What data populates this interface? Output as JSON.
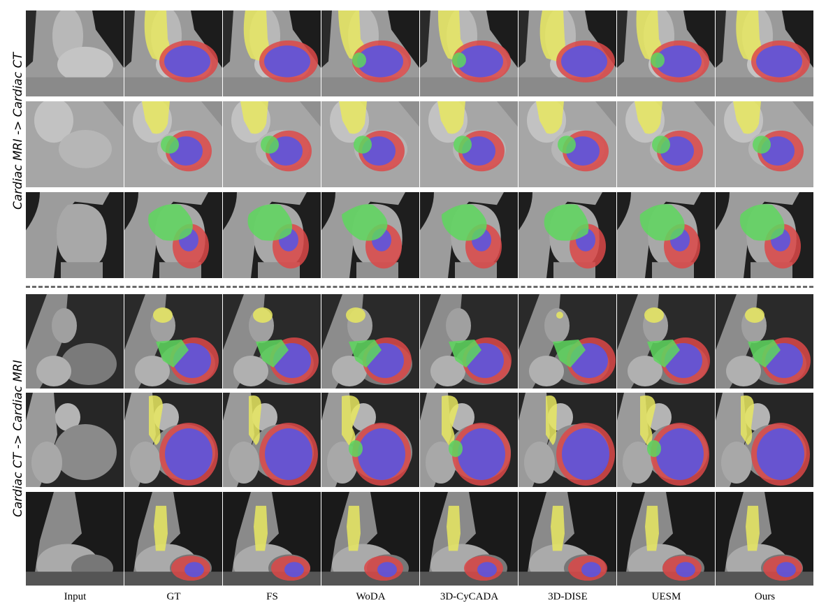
{
  "figure": {
    "row_groups": [
      {
        "label": "Cardiac MRI -> Cardiac CT",
        "modality": "CT"
      },
      {
        "label": "Cardiac CT -> Cardiac MRI",
        "modality": "MRI"
      }
    ],
    "columns": [
      "Input",
      "GT",
      "FS",
      "WoDA",
      "3D-CyCADA",
      "3D-DISE",
      "UESM",
      "Ours"
    ],
    "legend_colors": {
      "yellow_structure": "#e8e860",
      "green_structure": "#5ed75e",
      "blue_structure": "#5555e6",
      "red_structure": "#dc4848"
    },
    "divider_style": "dashed"
  }
}
